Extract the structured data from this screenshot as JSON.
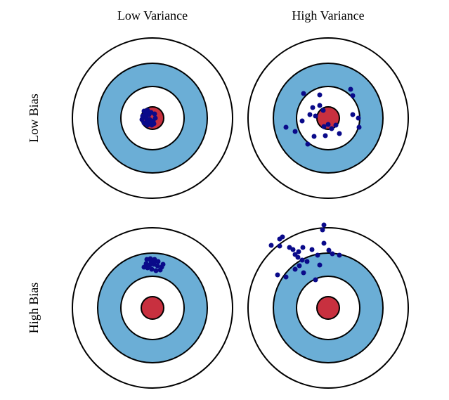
{
  "columns": [
    "Low Variance",
    "High Variance"
  ],
  "rows": [
    "Low Bias",
    "High Bias"
  ]
}
